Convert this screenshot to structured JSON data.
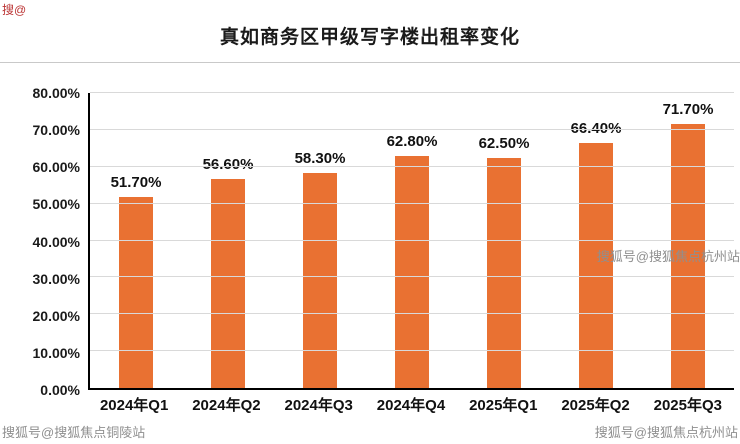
{
  "title": "真如商务区甲级写字楼出租率变化",
  "watermarks": {
    "top_left": "搜@",
    "bottom_left": "搜狐号@搜狐焦点铜陵站",
    "mid_right": "搜狐号@搜狐焦点杭州站",
    "bottom_right": "搜狐号@搜狐焦点杭州站"
  },
  "chart_data": {
    "type": "bar",
    "title": "真如商务区甲级写字楼出租率变化",
    "categories": [
      "2024年Q1",
      "2024年Q2",
      "2024年Q3",
      "2024年Q4",
      "2025年Q1",
      "2025年Q2",
      "2025年Q3"
    ],
    "values": [
      51.7,
      56.6,
      58.3,
      62.8,
      62.5,
      66.4,
      71.7
    ],
    "value_labels": [
      "51.70%",
      "56.60%",
      "58.30%",
      "62.80%",
      "62.50%",
      "66.40%",
      "71.70%"
    ],
    "xlabel": "",
    "ylabel": "",
    "ylim": [
      0,
      80
    ],
    "ytick_step": 10,
    "ytick_labels": [
      "0.00%",
      "10.00%",
      "20.00%",
      "30.00%",
      "40.00%",
      "50.00%",
      "60.00%",
      "70.00%",
      "80.00%"
    ],
    "bar_color": "#E97132",
    "grid": true,
    "legend": "none"
  }
}
